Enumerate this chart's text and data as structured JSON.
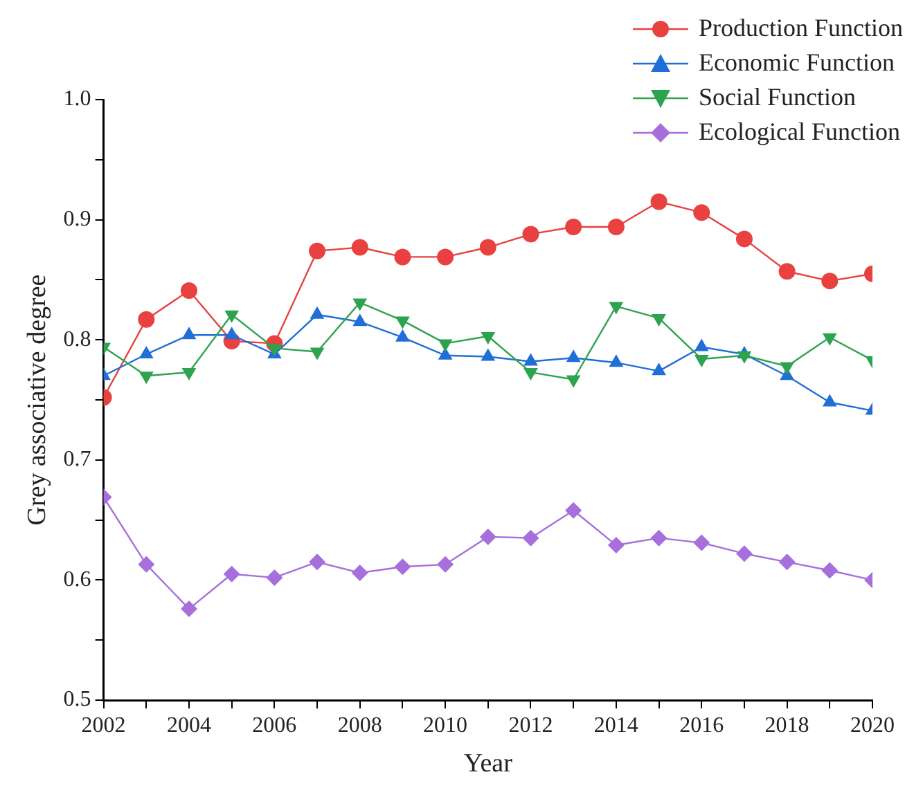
{
  "chart_data": {
    "type": "line",
    "xlabel": "Year",
    "ylabel": "Grey associative degree",
    "x": [
      2002,
      2003,
      2004,
      2005,
      2006,
      2007,
      2008,
      2009,
      2010,
      2011,
      2012,
      2013,
      2014,
      2015,
      2016,
      2017,
      2018,
      2019,
      2020
    ],
    "series": [
      {
        "name": "Production Function",
        "color": "#e8413f",
        "marker": "circle",
        "values": [
          0.752,
          0.817,
          0.841,
          0.799,
          0.797,
          0.874,
          0.877,
          0.869,
          0.869,
          0.877,
          0.888,
          0.894,
          0.894,
          0.915,
          0.906,
          0.884,
          0.857,
          0.849,
          0.855
        ]
      },
      {
        "name": "Economic Function",
        "color": "#1f6fd6",
        "marker": "triangle",
        "values": [
          0.77,
          0.788,
          0.804,
          0.804,
          0.788,
          0.821,
          0.815,
          0.802,
          0.787,
          0.786,
          0.782,
          0.785,
          0.781,
          0.774,
          0.794,
          0.788,
          0.77,
          0.748,
          0.741
        ]
      },
      {
        "name": "Social Function",
        "color": "#2ea34f",
        "marker": "triangle-down",
        "values": [
          0.794,
          0.77,
          0.773,
          0.821,
          0.793,
          0.79,
          0.831,
          0.816,
          0.797,
          0.803,
          0.773,
          0.767,
          0.828,
          0.818,
          0.784,
          0.787,
          0.778,
          0.802,
          0.783
        ]
      },
      {
        "name": "Ecological Function",
        "color": "#a66fdc",
        "marker": "diamond",
        "values": [
          0.669,
          0.613,
          0.576,
          0.605,
          0.602,
          0.615,
          0.606,
          0.611,
          0.613,
          0.636,
          0.635,
          0.658,
          0.629,
          0.635,
          0.631,
          0.622,
          0.615,
          0.608,
          0.6
        ]
      }
    ],
    "xlim": [
      2002,
      2020
    ],
    "xticks": [
      2002,
      {
        "value": 2003,
        "label": null
      },
      2004,
      {
        "value": 2005,
        "label": null
      },
      2006,
      {
        "value": 2007,
        "label": null
      },
      2008,
      {
        "value": 2009,
        "label": null
      },
      2010,
      {
        "value": 2011,
        "label": null
      },
      2012,
      {
        "value": 2013,
        "label": null
      },
      2014,
      {
        "value": 2015,
        "label": null
      },
      2016,
      {
        "value": 2017,
        "label": null
      },
      2018,
      {
        "value": 2019,
        "label": null
      },
      2020
    ],
    "ylim": [
      0.5,
      1.0
    ],
    "yticks": [
      0.5,
      {
        "value": 0.55,
        "label": null
      },
      0.6,
      {
        "value": 0.65,
        "label": null
      },
      0.7,
      {
        "value": 0.75,
        "label": null
      },
      0.8,
      {
        "value": 0.85,
        "label": null
      },
      0.9,
      {
        "value": 0.95,
        "label": null
      },
      {
        "value": 1.0,
        "label": "1.0"
      }
    ],
    "grid": false,
    "legend": "top right",
    "line_style": "solid"
  }
}
